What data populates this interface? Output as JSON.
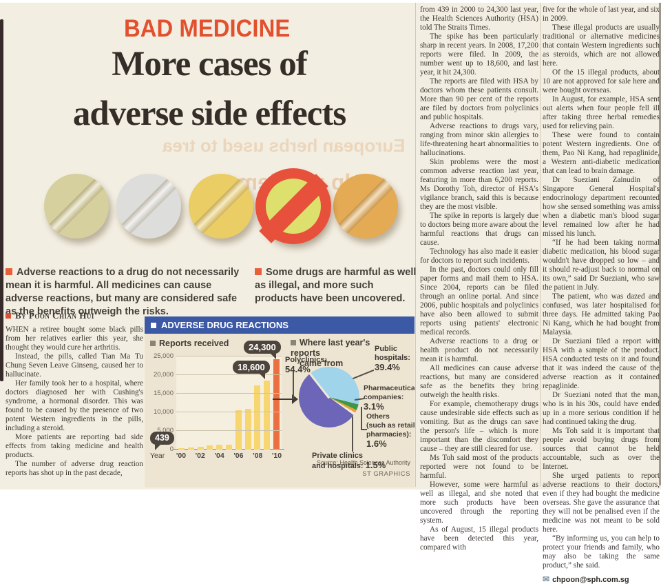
{
  "kicker": "BAD MEDICINE",
  "headline": {
    "line1": "More cases of",
    "line2": "adverse side effects"
  },
  "ghost_text_1": "European herbs used to trea",
  "ghost_text_2": "scalp problems",
  "summaries": {
    "left": "Adverse reactions to a drug do not necessarily mean it is harmful. All medicines can cause adverse reactions, but many are considered safe as the benefits outweigh the risks.",
    "right": "Some drugs are harmful as well as illegal, and more such products have been uncovered."
  },
  "byline": "By Poon Chian Hui",
  "pills": {
    "items": [
      {
        "name": "khaki-pill",
        "color": "#d6cf9e"
      },
      {
        "name": "white-pill",
        "color": "#dddddb"
      },
      {
        "name": "yellow-pill",
        "color": "#ebcd66"
      },
      {
        "name": "banned-pill",
        "color": "#dde06c",
        "overlay": "prohibition-sign",
        "overlay_color": "#e7503a"
      },
      {
        "name": "orange-pill",
        "color": "#e4aa54"
      }
    ]
  },
  "article": {
    "col1": [
      "WHEN a retiree bought some black pills from her relatives earlier this year, she thought they would cure her arthritis.",
      "Instead, the pills, called Tian Ma Tu Chung Seven Leave Ginseng, caused her to hallucinate.",
      "Her family took her to a hospital, where doctors diagnosed her with Cushing's syndrome, a hormonal disorder. This was found to be caused by the presence of two potent Western ingredients in the pills, including a steroid.",
      "More patients are reporting bad side effects from taking medicine and health products.",
      "The number of adverse drug reaction reports has shot up in the past decade,"
    ],
    "col2": [
      "from 439 in 2000 to 24,300 last year, the Health Sciences Authority (HSA) told The Straits Times.",
      "The spike has been particularly sharp in recent years. In 2008, 17,200 reports were filed. In 2009, the number went up to 18,600, and last year, it hit 24,300.",
      "The reports are filed with HSA by doctors whom these patients consult. More than 90 per cent of the reports are filed by doctors from polyclinics and public hospitals.",
      "Adverse reactions to drugs vary, ranging from minor skin allergies to life-threatening heart abnormalities to hallucinations.",
      "Skin problems were the most common adverse reaction last year, featuring in more than 6,200 reports. Ms Dorothy Toh, director of HSA's vigilance branch, said this is because they are the most visible.",
      "The spike in reports is largely due to doctors being more aware about the harmful reactions that drugs can cause.",
      "Technology has also made it easier for doctors to report such incidents.",
      "In the past, doctors could only fill paper forms and mail them to HSA. Since 2004, reports can be filed through an online portal. And since 2006, public hospitals and polyclinics have also been allowed to submit reports using patients' electronic medical records.",
      "Adverse reactions to a drug or health product do not necessarily mean it is harmful.",
      "All medicines can cause adverse reactions, but many are considered safe as the benefits they bring outweigh the health risks.",
      "For example, chemotherapy drugs cause undesirable side effects such as vomiting. But as the drugs can save the person's life – which is more important than the discomfort they cause – they are still cleared for use.",
      "Ms Toh said most of the products reported were not found to be harmful.",
      "However, some were harmful as well as illegal, and she noted that more such products have been uncovered through the reporting system.",
      "As of August, 15 illegal products have been detected this year, compared with"
    ],
    "col3": [
      "five for the whole of last year, and six in 2009.",
      "These illegal products are usually traditional or alternative medicines that contain Western ingredients such as steroids, which are not allowed here.",
      "Of the 15 illegal products, about 10 are not approved for sale here and were bought overseas.",
      "In August, for example, HSA sent out alerts when four people fell ill after taking three herbal remedies used for relieving pain.",
      "These were found to contain potent Western ingredients. One of them, Pao Ni Kang, had repaglinide, a Western anti-diabetic medication that can lead to brain damage.",
      "Dr Sueziani Zainudin of Singapore General Hospital's endocrinology department recounted how she sensed something was amiss when a diabetic man's blood sugar level remained low after he had missed his lunch.",
      "“If he had been taking normal diabetic medication, his blood sugar wouldn't have dropped so low – and it should re-adjust back to normal on its own,” said Dr Sueziani, who saw the patient in July.",
      "The patient, who was dazed and confused, was later hospitalised for three days. He admitted taking Pao Ni Kang, which he had bought from Malaysia.",
      "Dr Sueziani filed a report with HSA with a sample of the product. HSA conducted tests on it and found that it was indeed the cause of the adverse reaction as it contained repaglinide.",
      "Dr Sueziani noted that the man, who is in his 30s, could have ended up in a more serious condition if he had continued taking the drug.",
      "Ms Toh said it is important that people avoid buying drugs from sources that cannot be held accountable, such as over the Internet.",
      "She urged patients to report adverse reactions to their doctors, even if they had bought the medicine overseas. She gave the assurance that they will not be penalised even if the medicine was not meant to be sold here.",
      "“By informing us, you can help to protect your friends and family, who may also be taking the same product,” she said."
    ]
  },
  "footer": {
    "email": "chpoon@sph.com.sg",
    "email_icon": "envelope-icon"
  },
  "chart": {
    "header": "ADVERSE DRUG REACTIONS",
    "bar_title": "Reports received",
    "pie_title_line1": "Where last year's reports",
    "pie_title_line2": "came from",
    "year_prefix": "Year",
    "xtick_labels": [
      "'00",
      "'02",
      "'04",
      "'06",
      "'08",
      "'10"
    ],
    "ytick_labels": [
      "0",
      "5,000",
      "10,000",
      "15,000",
      "20,000",
      "25,000"
    ],
    "callout_439": "439",
    "callout_18600": "18,600",
    "callout_24300": "24,300",
    "source": "Source: Health Sciences Authority",
    "credit": "ST GRAPHICS",
    "pie_labels": {
      "poly_lines": [
        "Polyclinics:"
      ],
      "poly_pct": "54.4%",
      "public_lines": [
        "Public",
        "hospitals:"
      ],
      "public_pct": "39.4%",
      "pharma_lines": [
        "Pharmaceutical",
        "companies:"
      ],
      "pharma_pct": "3.1%",
      "others_lines": [
        "Others",
        "(such as retail",
        "pharmacies):"
      ],
      "others_pct": "1.6%",
      "private_lines": [
        "Private clinics",
        "and hospitals:"
      ],
      "private_pct": "1.5%"
    },
    "colors": {
      "header_bar": "#3c59a6",
      "bar_yellow": "#f7d56f",
      "bar_highlight": "#ec6f3f",
      "callout_bg": "#4d443c",
      "kicker_red": "#e2502e",
      "prohibition_red": "#e7503a"
    }
  },
  "chart_data": [
    {
      "type": "bar",
      "title": "Reports received",
      "x": [
        2000,
        2001,
        2002,
        2003,
        2004,
        2005,
        2006,
        2007,
        2008,
        2009,
        2010
      ],
      "values": [
        439,
        600,
        800,
        1200,
        1300,
        1300,
        10600,
        11000,
        17200,
        18600,
        24300
      ],
      "highlight_index": 10,
      "ylim": [
        0,
        25000
      ],
      "yticks": [
        0,
        5000,
        10000,
        15000,
        20000,
        25000
      ],
      "xlabel": "Year",
      "annotations": [
        {
          "x": 2000,
          "label": "439"
        },
        {
          "x": 2009,
          "label": "18,600"
        },
        {
          "x": 2010,
          "label": "24,300"
        }
      ],
      "bar_color": "#f7d56f",
      "highlight_color": "#ec6f3f",
      "grid": true
    },
    {
      "type": "pie",
      "title": "Where last year's reports came from",
      "start_deg": 322,
      "slices": [
        {
          "label": "Public hospitals",
          "value": 39.4,
          "color": "#9fd4ea"
        },
        {
          "label": "Pharmaceutical companies",
          "value": 3.1,
          "color": "#3e9749"
        },
        {
          "label": "Others (such as retail pharmacies)",
          "value": 1.6,
          "color": "#e6a23b"
        },
        {
          "label": "Private clinics and hospitals",
          "value": 1.5,
          "color": "#f1ead8"
        },
        {
          "label": "Polyclinics",
          "value": 54.4,
          "color": "#6c65b8"
        }
      ],
      "source": "Source: Health Sciences Authority"
    }
  ]
}
